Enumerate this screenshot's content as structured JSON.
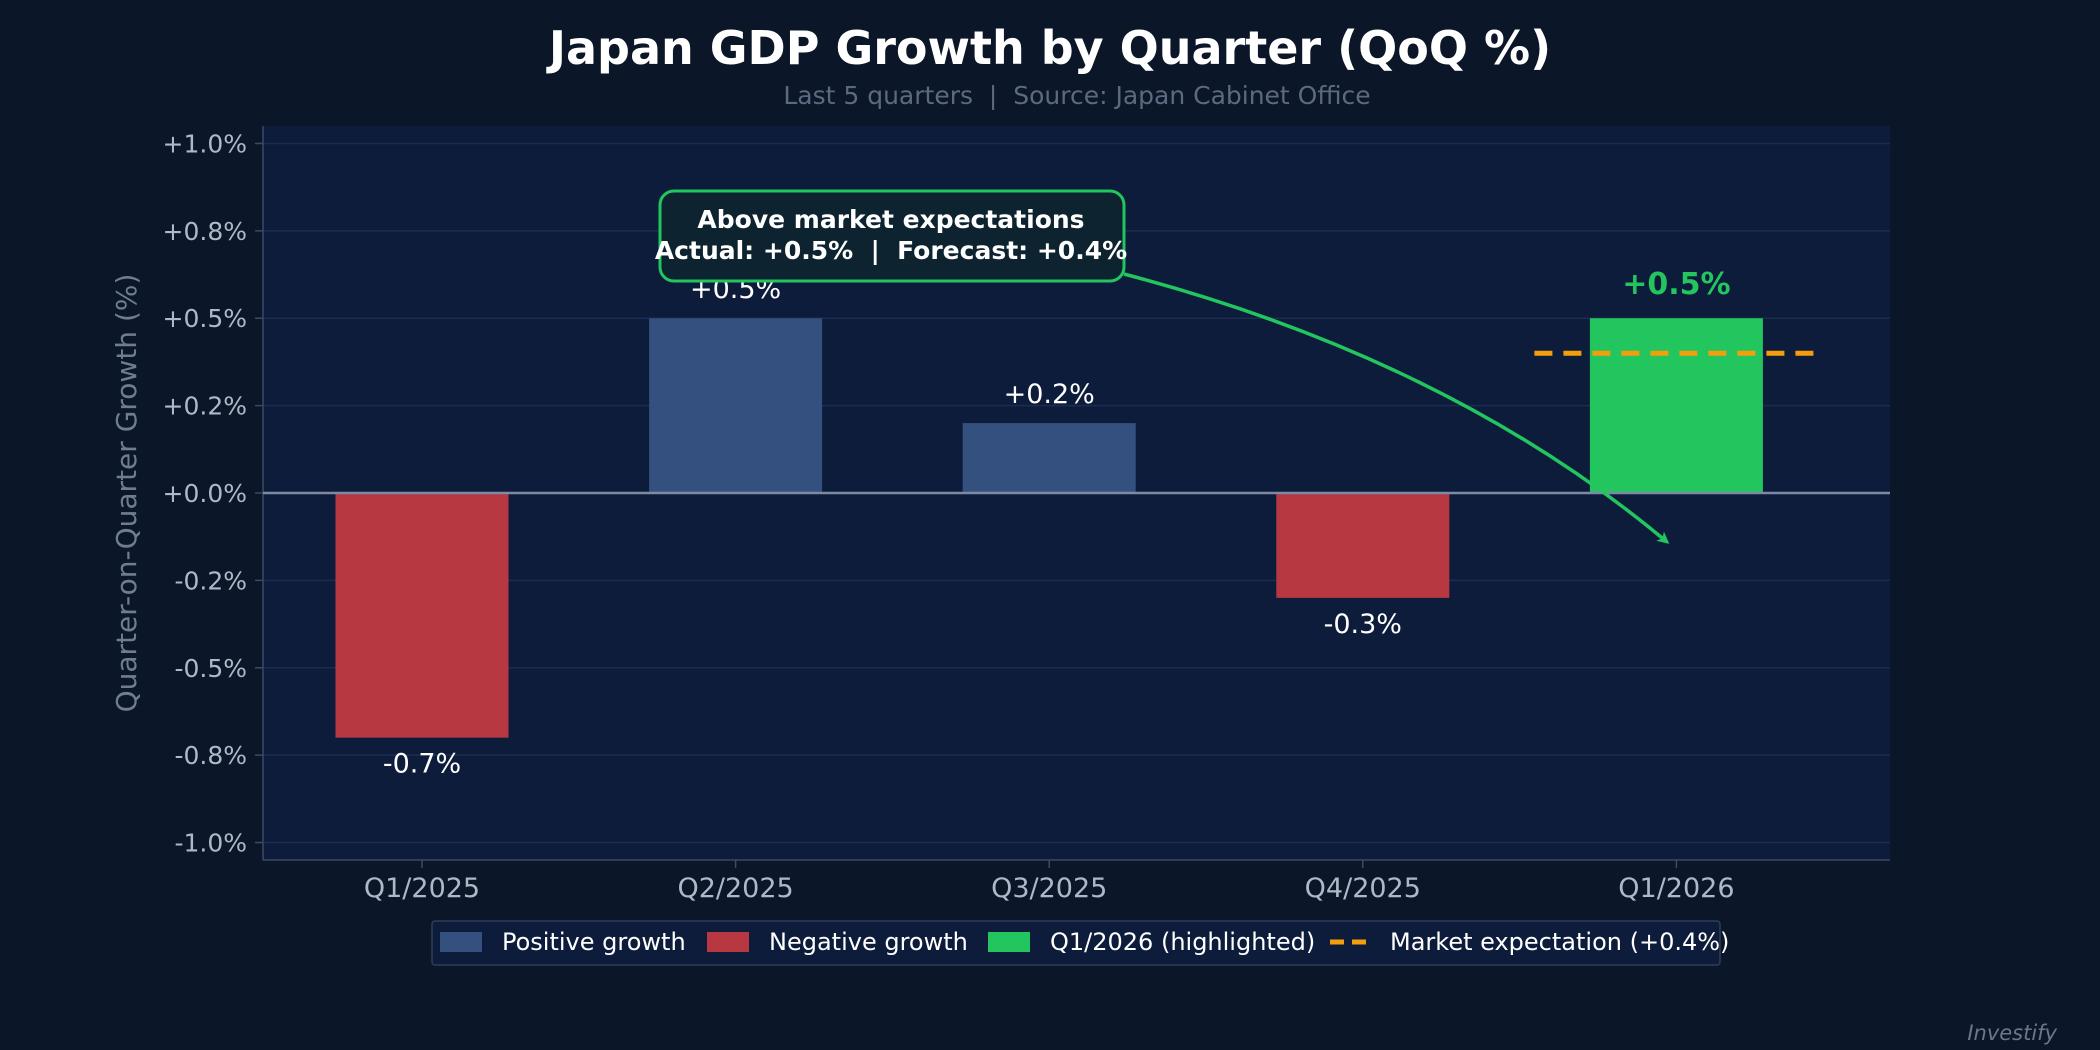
{
  "chart_data": {
    "type": "bar",
    "title": "Japan GDP Growth by Quarter (QoQ %)",
    "subtitle": "Last 5 quarters  |  Source: Japan Cabinet Office",
    "ylabel": "Quarter-on-Quarter Growth (%)",
    "xlabel": "",
    "ylim": [
      -1.05,
      1.05
    ],
    "yticks": [
      1.0,
      0.75,
      0.5,
      0.25,
      0.0,
      -0.25,
      -0.5,
      -0.75,
      -1.0
    ],
    "ytick_labels": [
      "+1.0%",
      "+0.8%",
      "+0.5%",
      "+0.2%",
      "+0.0%",
      "-0.2%",
      "-0.5%",
      "-0.8%",
      "-1.0%"
    ],
    "categories": [
      "Q1/2025",
      "Q2/2025",
      "Q3/2025",
      "Q4/2025",
      "Q1/2026"
    ],
    "values": [
      -0.7,
      0.5,
      0.2,
      -0.3,
      0.5
    ],
    "value_labels": [
      "-0.7%",
      "+0.5%",
      "+0.2%",
      "-0.3%",
      "+0.5%"
    ],
    "highlight_index": 4,
    "market_expectation": 0.4,
    "grid": true,
    "colors": {
      "positive": "#34507f",
      "negative": "#b83842",
      "highlight": "#22c55e",
      "expectation": "#f59e0b",
      "plot_bg": "#0e1c3b",
      "page_bg": "#0b1628"
    },
    "annotation": {
      "line1": "Above market expectations",
      "line2": "Actual: +0.5%  |  Forecast: +0.4%"
    },
    "legend": {
      "placement": "bottom-center",
      "items": [
        {
          "label": "Positive growth",
          "kind": "positive"
        },
        {
          "label": "Negative growth",
          "kind": "negative"
        },
        {
          "label": "Q1/2026 (highlighted)",
          "kind": "highlight"
        },
        {
          "label": "Market expectation (+0.4%)",
          "kind": "expectation"
        }
      ]
    },
    "watermark": "Investify"
  }
}
